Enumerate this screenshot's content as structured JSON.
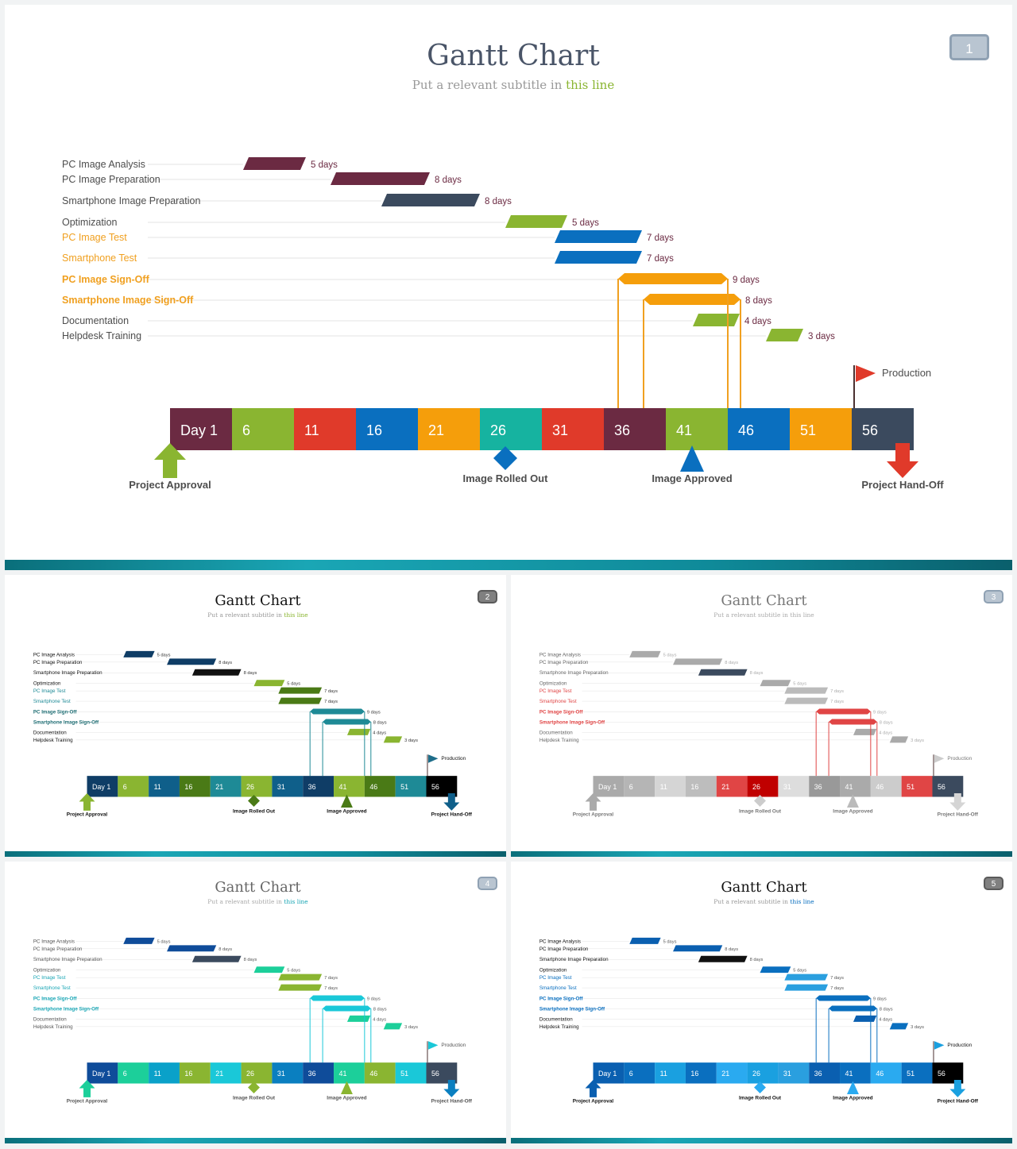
{
  "slides": [
    {
      "title": "Gantt Chart",
      "subtitle_prefix": "Put a relevant subtitle in ",
      "subtitle_highlight": "this line",
      "page_number": "1",
      "theme": {
        "title": "#4a5568",
        "subtitle": "#999999",
        "highlight": "#8ab531",
        "badge_bg": "#b9c5d1",
        "badge_border": "#8fa1b3",
        "label_default": "#4d4d4d",
        "label_test": "#f0a020",
        "label_signoff": "#f0a020",
        "task_colors": [
          "#6b2a42",
          "#6b2a42",
          "#3b4a5e",
          "#8ab531",
          "#0a6fbf",
          "#0a6fbf",
          "#f59e0b",
          "#f59e0b",
          "#8ab531",
          "#8ab531"
        ],
        "day_colors": [
          "#6b2a42",
          "#8ab531",
          "#e03a2a",
          "#0a6fbf",
          "#f59e0b",
          "#16b3a0",
          "#e03a2a",
          "#6b2a42",
          "#8ab531",
          "#0a6fbf",
          "#f59e0b",
          "#3b4a5e"
        ],
        "signoff_color": "#f0a020",
        "flag": "#e03a2a",
        "approval": "#8ab531",
        "rolled_out": "#0a6fbf",
        "approved": "#0a6fbf",
        "handoff": "#e03a2a",
        "milestone_text": "#4d4d4d",
        "duration_text": "#6b2a42"
      }
    },
    {
      "title": "Gantt Chart",
      "subtitle_prefix": "Put a relevant subtitle in ",
      "subtitle_highlight": "this line",
      "page_number": "2",
      "theme": {
        "title": "#111111",
        "subtitle": "#999999",
        "highlight": "#8ab531",
        "badge_bg": "#808080",
        "badge_border": "#5a5a5a",
        "label_default": "#111111",
        "label_test": "#1e8a96",
        "label_signoff": "#1e6d73",
        "task_colors": [
          "#0f3d66",
          "#0f3d66",
          "#111111",
          "#8ab531",
          "#4a7a16",
          "#4a7a16",
          "#1e8a96",
          "#1e8a96",
          "#8ab531",
          "#8ab531"
        ],
        "day_colors": [
          "#0f3d66",
          "#8ab531",
          "#0f5f8a",
          "#4a7a16",
          "#1e8a96",
          "#8ab531",
          "#0f5f8a",
          "#0f3d66",
          "#8ab531",
          "#4a7a16",
          "#1e8a96",
          "#000000"
        ],
        "signoff_color": "#1e8a96",
        "flag": "#1e6d8a",
        "approval": "#8ab531",
        "rolled_out": "#4a7a16",
        "approved": "#4a7a16",
        "handoff": "#0f5f8a",
        "milestone_text": "#111111",
        "duration_text": "#333333"
      }
    },
    {
      "title": "Gantt Chart",
      "subtitle_prefix": "Put a relevant subtitle in ",
      "subtitle_highlight": "this line",
      "page_number": "3",
      "theme": {
        "title": "#777777",
        "subtitle": "#aaaaaa",
        "highlight": "#aaaaaa",
        "badge_bg": "#b9c5d1",
        "badge_border": "#8fa1b3",
        "label_default": "#666666",
        "label_test": "#e04545",
        "label_signoff": "#e04545",
        "task_colors": [
          "#aaaaaa",
          "#aaaaaa",
          "#3b4a5e",
          "#aaaaaa",
          "#bbbbbb",
          "#bbbbbb",
          "#e04545",
          "#e04545",
          "#aaaaaa",
          "#aaaaaa"
        ],
        "day_colors": [
          "#aaaaaa",
          "#b5b5b5",
          "#d5d5d5",
          "#bdbdbd",
          "#e04545",
          "#c00000",
          "#dddddd",
          "#999999",
          "#aaaaaa",
          "#cccccc",
          "#e04545",
          "#3b4a5e"
        ],
        "signoff_color": "#e04545",
        "flag": "#cccccc",
        "approval": "#aaaaaa",
        "rolled_out": "#cccccc",
        "approved": "#bbbbbb",
        "handoff": "#d5d5d5",
        "milestone_text": "#777777",
        "duration_text": "#aaaaaa"
      }
    },
    {
      "title": "Gantt Chart",
      "subtitle_prefix": "Put a relevant subtitle in ",
      "subtitle_highlight": "this line",
      "page_number": "4",
      "theme": {
        "title": "#666666",
        "subtitle": "#aaaaaa",
        "highlight": "#1aa6b5",
        "badge_bg": "#b9c5d1",
        "badge_border": "#8fa1b3",
        "label_default": "#555555",
        "label_test": "#1aa6b5",
        "label_signoff": "#1aa6b5",
        "task_colors": [
          "#0f4c9a",
          "#0f4c9a",
          "#3b4a5e",
          "#1ccf9a",
          "#8ab531",
          "#8ab531",
          "#1ac8d8",
          "#1ac8d8",
          "#1ccf9a",
          "#1ccf9a"
        ],
        "day_colors": [
          "#0f4c9a",
          "#1ccf9a",
          "#0aa1c9",
          "#8ab531",
          "#1ac8d8",
          "#8ab531",
          "#0a7fc0",
          "#0f4c9a",
          "#1ccf9a",
          "#8ab531",
          "#1ac8d8",
          "#3b4a5e"
        ],
        "signoff_color": "#1ac8d8",
        "flag": "#1ac8d8",
        "approval": "#1ccf9a",
        "rolled_out": "#8ab531",
        "approved": "#8ab531",
        "handoff": "#0a7fc0",
        "milestone_text": "#555555",
        "duration_text": "#555555"
      }
    },
    {
      "title": "Gantt Chart",
      "subtitle_prefix": "Put a relevant subtitle in ",
      "subtitle_highlight": "this line",
      "page_number": "5",
      "theme": {
        "title": "#111111",
        "subtitle": "#999999",
        "highlight": "#0a6fbf",
        "badge_bg": "#808080",
        "badge_border": "#5a5a5a",
        "label_default": "#111111",
        "label_test": "#0a6fbf",
        "label_signoff": "#0a6fbf",
        "task_colors": [
          "#0a5fb0",
          "#0a5fb0",
          "#111111",
          "#0a6fbf",
          "#2a9fdf",
          "#2a9fdf",
          "#0a6fbf",
          "#0a6fbf",
          "#0a5fb0",
          "#0a6fbf"
        ],
        "day_colors": [
          "#0a5fb0",
          "#0a6fbf",
          "#1aa0e0",
          "#0a6fbf",
          "#2aaaf0",
          "#1aa0e0",
          "#2a9fdf",
          "#0a5fb0",
          "#0a6fbf",
          "#2aaaf0",
          "#0a6fbf",
          "#000000"
        ],
        "signoff_color": "#0a6fbf",
        "flag": "#1aa0e0",
        "approval": "#0a5fb0",
        "rolled_out": "#2aaaf0",
        "approved": "#2aaaf0",
        "handoff": "#1aa0e0",
        "milestone_text": "#111111",
        "duration_text": "#555555"
      }
    }
  ],
  "tasks": [
    {
      "label": "PC Image Analysis",
      "duration": "5 days",
      "kind": "default"
    },
    {
      "label": "PC Image Preparation",
      "duration": "8 days",
      "kind": "default"
    },
    {
      "label": "Smartphone  Image Preparation",
      "duration": "8 days",
      "kind": "default"
    },
    {
      "label": "Optimization",
      "duration": "5 days",
      "kind": "default"
    },
    {
      "label": "PC Image Test",
      "duration": "7 days",
      "kind": "test"
    },
    {
      "label": "Smartphone  Test",
      "duration": "7 days",
      "kind": "test"
    },
    {
      "label": "PC Image Sign-Off",
      "duration": "9 days",
      "kind": "signoff"
    },
    {
      "label": "Smartphone Image Sign-Off",
      "duration": "8 days",
      "kind": "signoff"
    },
    {
      "label": "Documentation",
      "duration": "4 days",
      "kind": "default"
    },
    {
      "label": "Helpdesk Training",
      "duration": "3 days",
      "kind": "default"
    }
  ],
  "days": [
    "Day 1",
    "6",
    "11",
    "16",
    "21",
    "26",
    "31",
    "36",
    "41",
    "46",
    "51",
    "56"
  ],
  "milestones": {
    "approval": "Project Approval",
    "rolled_out": "Image Rolled Out",
    "approved": "Image Approved",
    "handoff": "Project Hand-Off",
    "production": "Production"
  }
}
